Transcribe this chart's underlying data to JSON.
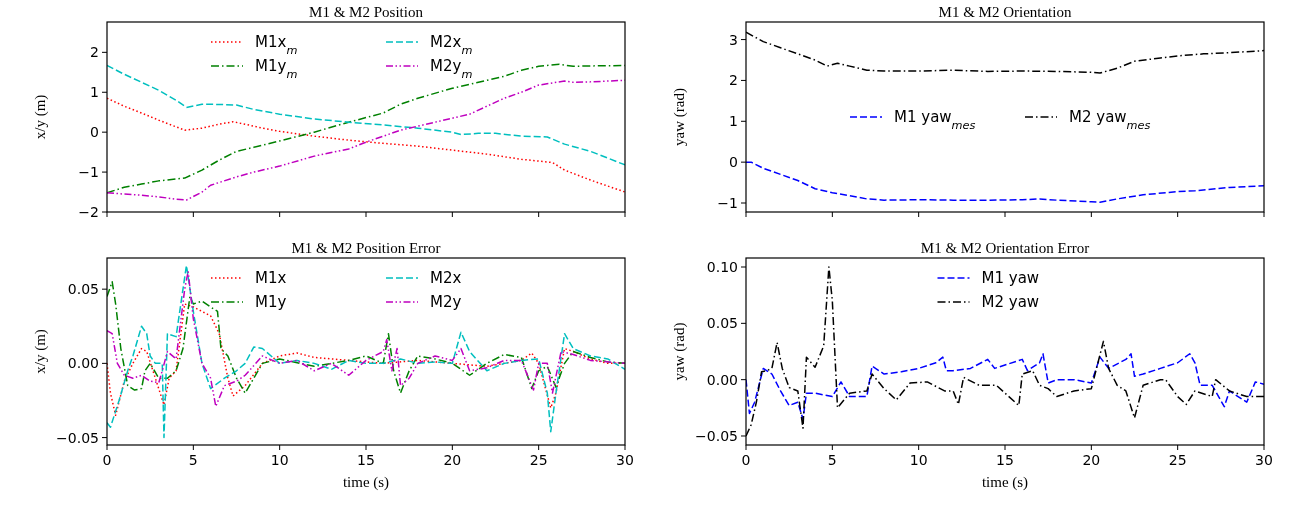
{
  "chart_data": [
    {
      "type": "line",
      "title": "M1 & M2 Position",
      "ylabel": "x/y (m)",
      "xlim": [
        0,
        30
      ],
      "xticks": [
        {
          "value": 0,
          "label": null
        },
        {
          "value": 5,
          "label": null
        },
        {
          "value": 10,
          "label": null
        },
        {
          "value": 15,
          "label": null
        },
        {
          "value": 20,
          "label": null
        },
        {
          "value": 25,
          "label": null
        },
        {
          "value": 30,
          "label": null
        }
      ],
      "ylim": [
        -2,
        2.76
      ],
      "yticks": [
        {
          "value": -2,
          "label": "−2"
        },
        {
          "value": -1,
          "label": "−1"
        },
        0,
        1,
        2
      ],
      "tick_labels": "y",
      "legend": "top",
      "series": [
        {
          "name": "M1x$_{m}$",
          "color": "#ff0000",
          "line_style": "dotted",
          "x": [
            0,
            1,
            2,
            3,
            4.5,
            5.5,
            6.5,
            7.3,
            8,
            9,
            10,
            12,
            14,
            16,
            18,
            20,
            22,
            24,
            25.8,
            26.5,
            28,
            30
          ],
          "values": [
            0.85,
            0.65,
            0.48,
            0.3,
            0.05,
            0.1,
            0.2,
            0.26,
            0.2,
            0.1,
            0.02,
            -0.1,
            -0.2,
            -0.28,
            -0.35,
            -0.45,
            -0.55,
            -0.68,
            -0.76,
            -0.95,
            -1.2,
            -1.5
          ]
        },
        {
          "name": "M1y$_{m}$",
          "color": "#008000",
          "line_style": "dashdot",
          "x": [
            0,
            1,
            2,
            3,
            4.5,
            5.5,
            6.5,
            7.5,
            8.5,
            10,
            12,
            14,
            16,
            17,
            18,
            20,
            21,
            22,
            23,
            24,
            25,
            26.2,
            27,
            28,
            30
          ],
          "values": [
            -1.52,
            -1.38,
            -1.3,
            -1.22,
            -1.15,
            -0.95,
            -0.7,
            -0.48,
            -0.38,
            -0.22,
            0,
            0.25,
            0.48,
            0.7,
            0.85,
            1.1,
            1.2,
            1.3,
            1.4,
            1.55,
            1.65,
            1.7,
            1.65,
            1.66,
            1.67
          ]
        },
        {
          "name": "M2x$_{m}$",
          "color": "#00bfbf",
          "line_style": "dashed",
          "x": [
            0,
            1,
            2,
            3,
            4,
            4.6,
            5.5,
            6,
            7.5,
            8.5,
            10,
            12,
            14,
            16,
            18,
            20,
            20.5,
            21.5,
            22.5,
            24,
            25.5,
            26.5,
            28,
            30
          ],
          "values": [
            1.67,
            1.45,
            1.25,
            1.05,
            0.8,
            0.62,
            0.7,
            0.7,
            0.68,
            0.57,
            0.45,
            0.33,
            0.25,
            0.18,
            0.1,
            0,
            -0.06,
            -0.03,
            -0.03,
            -0.1,
            -0.12,
            -0.3,
            -0.48,
            -0.82
          ]
        },
        {
          "name": "M2y$_{m}$",
          "color": "#bf00bf",
          "line_style": "dashdotdot",
          "x": [
            0,
            1,
            2,
            3,
            4,
            4.6,
            5.5,
            6,
            7.5,
            8.5,
            10,
            12,
            14,
            15,
            16,
            17,
            18,
            20,
            21,
            22,
            23,
            24,
            25,
            26.5,
            27,
            28,
            30
          ],
          "values": [
            -1.52,
            -1.55,
            -1.58,
            -1.62,
            -1.68,
            -1.7,
            -1.5,
            -1.33,
            -1.12,
            -1,
            -0.85,
            -0.6,
            -0.42,
            -0.25,
            -0.1,
            0.05,
            0.15,
            0.35,
            0.45,
            0.65,
            0.85,
            1,
            1.18,
            1.28,
            1.25,
            1.26,
            1.3
          ]
        }
      ]
    },
    {
      "type": "line",
      "title": "M1 & M2 Orientation",
      "ylabel": "yaw (rad)",
      "xlim": [
        0,
        30
      ],
      "xticks": [
        {
          "value": 0,
          "label": null
        },
        {
          "value": 5,
          "label": null
        },
        {
          "value": 10,
          "label": null
        },
        {
          "value": 15,
          "label": null
        },
        {
          "value": 20,
          "label": null
        },
        {
          "value": 25,
          "label": null
        },
        {
          "value": 30,
          "label": null
        }
      ],
      "ylim": [
        -1.22,
        3.43
      ],
      "yticks": [
        {
          "value": -1,
          "label": "−1"
        },
        0,
        1,
        2,
        3
      ],
      "tick_labels": "y",
      "legend": "center",
      "series": [
        {
          "name": "M1 yaw$_{mes}$",
          "color": "#0000ff",
          "line_style": "dashed",
          "x": [
            0,
            0.3,
            1,
            2,
            3,
            4,
            5,
            6,
            7,
            8,
            10,
            12,
            14,
            16,
            17,
            18,
            20,
            20.5,
            21.5,
            23,
            25,
            26,
            28,
            30
          ],
          "values": [
            0,
            0,
            -0.15,
            -0.3,
            -0.45,
            -0.65,
            -0.75,
            -0.82,
            -0.9,
            -0.93,
            -0.92,
            -0.93,
            -0.93,
            -0.92,
            -0.9,
            -0.93,
            -0.97,
            -0.98,
            -0.9,
            -0.8,
            -0.72,
            -0.7,
            -0.62,
            -0.58
          ]
        },
        {
          "name": "M2 yaw$_{mes}$",
          "color": "#000000",
          "line_style": "dashdot",
          "x": [
            0,
            1,
            2,
            3,
            4,
            4.7,
            5.3,
            6,
            7,
            8,
            10,
            12,
            14,
            16,
            18,
            20,
            20.5,
            21.5,
            22.5,
            24,
            25,
            26.5,
            28,
            30
          ],
          "values": [
            3.18,
            2.95,
            2.8,
            2.65,
            2.5,
            2.35,
            2.42,
            2.35,
            2.25,
            2.23,
            2.23,
            2.25,
            2.22,
            2.23,
            2.22,
            2.2,
            2.18,
            2.3,
            2.47,
            2.55,
            2.6,
            2.65,
            2.68,
            2.73
          ]
        }
      ]
    },
    {
      "type": "line",
      "title": "M1 & M2 Position Error",
      "xlabel": "time (s)",
      "ylabel": "x/y (m)",
      "xlim": [
        0,
        30
      ],
      "xticks": [
        0,
        5,
        10,
        15,
        20,
        25,
        30
      ],
      "ylim": [
        -0.055,
        0.071
      ],
      "yticks": [
        {
          "value": -0.05,
          "label": "−0.05"
        },
        {
          "value": 0,
          "label": "0.00"
        },
        0.05
      ],
      "legend": "top",
      "series": [
        {
          "name": "M1x",
          "color": "#ff0000",
          "line_style": "dotted",
          "x": [
            0,
            0.2,
            0.5,
            1,
            1.5,
            2,
            2.3,
            2.8,
            3.3,
            3.6,
            4,
            4.5,
            5,
            6,
            6.5,
            7,
            7.3,
            8,
            9,
            10,
            11,
            12,
            14,
            16,
            18,
            20,
            22,
            24,
            24.6,
            25,
            25.7,
            26,
            26.5,
            27,
            28,
            29,
            30
          ],
          "values": [
            0,
            -0.02,
            -0.035,
            -0.012,
            0,
            0.01,
            0.008,
            -0.01,
            -0.028,
            -0.01,
            -0.005,
            0.04,
            0.038,
            0.032,
            0.02,
            -0.01,
            -0.022,
            -0.015,
            0,
            0.005,
            0.007,
            0.004,
            0.002,
            0,
            0.002,
            0,
            -0.002,
            0.002,
            0.007,
            0,
            -0.03,
            -0.02,
            0.01,
            0.008,
            0.003,
            0,
            0
          ]
        },
        {
          "name": "M1y",
          "color": "#008000",
          "line_style": "dashdot",
          "x": [
            0,
            0.3,
            0.5,
            0.8,
            1.2,
            1.6,
            2,
            2.2,
            2.5,
            3,
            3.5,
            4,
            4.4,
            4.8,
            5,
            5.5,
            6,
            6.4,
            6.6,
            7,
            7.5,
            8,
            8.5,
            9,
            10,
            12,
            14,
            15,
            16,
            16.3,
            16.6,
            17,
            17.5,
            18,
            19,
            20,
            21,
            22,
            23,
            24,
            24.6,
            25,
            25.5,
            26,
            26.5,
            27,
            28,
            29,
            30
          ],
          "values": [
            0.045,
            0.055,
            0.04,
            0.01,
            -0.015,
            -0.018,
            -0.017,
            -0.005,
            0,
            -0.01,
            -0.01,
            -0.005,
            0.01,
            0.045,
            0.04,
            0.042,
            0.038,
            0.035,
            0.01,
            0.005,
            -0.01,
            -0.02,
            -0.01,
            0,
            0.003,
            -0.002,
            0.002,
            0.005,
            0,
            0.02,
            -0.005,
            -0.02,
            -0.005,
            0.005,
            0.003,
            0,
            -0.008,
            0,
            0.006,
            0.004,
            -0.017,
            -0.005,
            -0.002,
            -0.016,
            0,
            0.008,
            0.004,
            0.001,
            0
          ]
        },
        {
          "name": "M2x",
          "color": "#00bfbf",
          "line_style": "dashed",
          "x": [
            0,
            0.2,
            0.7,
            1.2,
            1.5,
            2,
            2.3,
            2.5,
            2.8,
            3.2,
            3.3,
            3.5,
            4,
            4.4,
            4.6,
            5,
            5.5,
            6,
            6.8,
            7.5,
            8,
            8.5,
            9,
            10,
            11,
            12,
            13,
            14,
            15,
            16,
            17,
            18,
            19,
            20,
            20.5,
            21,
            22,
            23,
            24,
            25,
            25.5,
            25.7,
            26,
            26.5,
            27,
            28,
            29,
            30
          ],
          "values": [
            -0.04,
            -0.043,
            -0.025,
            -0.005,
            0.005,
            0.025,
            0.02,
            0.005,
            0,
            0,
            -0.05,
            0.02,
            0.018,
            0.05,
            0.066,
            0.035,
            0,
            -0.017,
            -0.01,
            -0.005,
            0,
            0.011,
            0.01,
            0,
            0.002,
            0,
            -0.004,
            0.002,
            0,
            0,
            0.003,
            0,
            0.001,
            0,
            0.021,
            0.008,
            -0.005,
            0,
            0.002,
            0.003,
            -0.02,
            -0.046,
            -0.02,
            0.02,
            0.01,
            0.005,
            0.003,
            -0.004
          ]
        },
        {
          "name": "M2y",
          "color": "#bf00bf",
          "line_style": "dashdotdot",
          "x": [
            0,
            0.3,
            0.6,
            1,
            1.5,
            2,
            2.5,
            3,
            3.2,
            3.5,
            4,
            4.5,
            4.7,
            5,
            5.5,
            6,
            6.3,
            6.8,
            7.5,
            8,
            9,
            10,
            11,
            12,
            13,
            14,
            15,
            16,
            16.2,
            16.5,
            16.8,
            17,
            17.5,
            18,
            19,
            20,
            20.5,
            21,
            22,
            23,
            24,
            24.7,
            25,
            25.5,
            25.8,
            26.3,
            27,
            28,
            30
          ],
          "values": [
            0.022,
            0.02,
            0,
            -0.008,
            -0.01,
            -0.008,
            -0.012,
            -0.013,
            -0.005,
            0.008,
            0.003,
            0.05,
            0.062,
            0.03,
            0,
            -0.01,
            -0.029,
            -0.015,
            -0.012,
            -0.008,
            0.005,
            0,
            0.002,
            -0.005,
            0,
            -0.008,
            0.002,
            0.008,
            0.016,
            -0.005,
            0.01,
            -0.015,
            -0.01,
            0,
            0.005,
            0.002,
            0.01,
            -0.005,
            -0.003,
            0.002,
            0.002,
            -0.018,
            0,
            0,
            -0.02,
            0.008,
            0.006,
            0.002,
            0
          ]
        }
      ]
    },
    {
      "type": "line",
      "title": "M1 & M2 Orientation Error",
      "xlabel": "time (s)",
      "ylabel": "yaw (rad)",
      "xlim": [
        0,
        30
      ],
      "xticks": [
        0,
        5,
        10,
        15,
        20,
        25,
        30
      ],
      "ylim": [
        -0.058,
        0.108
      ],
      "yticks": [
        {
          "value": -0.05,
          "label": "−0.05"
        },
        {
          "value": 0,
          "label": "0.00"
        },
        0.05,
        {
          "value": 0.1,
          "label": "0.10"
        }
      ],
      "legend": "top",
      "series": [
        {
          "name": "M1 yaw",
          "color": "#0000ff",
          "line_style": "dashed",
          "x": [
            0,
            0.2,
            0.5,
            1,
            1.5,
            2,
            2.5,
            3,
            3.3,
            3.5,
            4,
            5,
            5.5,
            6,
            7,
            7.3,
            8,
            9,
            10,
            11,
            11.4,
            11.6,
            12,
            13,
            14,
            14.4,
            15,
            16,
            16.3,
            17,
            17.2,
            17.5,
            18,
            19,
            20,
            20.5,
            21,
            22,
            22.3,
            22.5,
            23,
            24,
            25,
            25.7,
            26,
            26.3,
            27,
            27.7,
            28,
            29,
            29.5,
            30
          ],
          "values": [
            0,
            -0.03,
            -0.02,
            0.01,
            0.005,
            -0.01,
            -0.023,
            -0.02,
            -0.035,
            -0.012,
            -0.012,
            -0.015,
            -0.002,
            -0.015,
            -0.015,
            0.012,
            0.005,
            0.007,
            0.01,
            0.015,
            0.02,
            0.008,
            0.008,
            0.01,
            0.018,
            0.01,
            0.013,
            0.018,
            0.008,
            0.015,
            0.023,
            -0.003,
            0,
            0,
            -0.003,
            0.02,
            0.01,
            0.018,
            0.023,
            0.003,
            0.005,
            0.01,
            0.015,
            0.023,
            0.015,
            -0.005,
            -0.005,
            -0.024,
            -0.01,
            -0.02,
            -0.002,
            -0.004
          ]
        },
        {
          "name": "M2 yaw",
          "color": "#000000",
          "line_style": "dashdot",
          "x": [
            0,
            0.3,
            0.6,
            0.9,
            1.2,
            1.5,
            1.8,
            2.1,
            2.5,
            3,
            3.3,
            3.5,
            4,
            4.5,
            4.8,
            5,
            5.3,
            6,
            7,
            7.3,
            8,
            8.7,
            9.5,
            10.5,
            11.5,
            12,
            12.3,
            12.6,
            13.5,
            14.5,
            15,
            15.8,
            16,
            16.6,
            17,
            17.5,
            18,
            19,
            20,
            20.7,
            21,
            21.5,
            22,
            22.5,
            23,
            24,
            24.3,
            25,
            25.5,
            26,
            27,
            27.2,
            28,
            29,
            30
          ],
          "values": [
            -0.05,
            -0.04,
            -0.02,
            0.007,
            0.008,
            0.01,
            0.033,
            0.01,
            -0.007,
            -0.01,
            -0.043,
            0.02,
            0.011,
            0.03,
            0.1,
            0.07,
            -0.025,
            -0.012,
            -0.01,
            0.005,
            -0.008,
            -0.018,
            -0.003,
            -0.002,
            -0.01,
            -0.01,
            -0.022,
            0.002,
            -0.005,
            -0.005,
            -0.012,
            -0.023,
            0.005,
            0.008,
            -0.005,
            -0.008,
            -0.015,
            -0.01,
            -0.008,
            0.034,
            0.01,
            -0.005,
            -0.01,
            -0.034,
            -0.005,
            0,
            0,
            -0.015,
            -0.022,
            -0.01,
            -0.015,
            0,
            -0.01,
            -0.015,
            -0.015
          ]
        }
      ]
    }
  ]
}
